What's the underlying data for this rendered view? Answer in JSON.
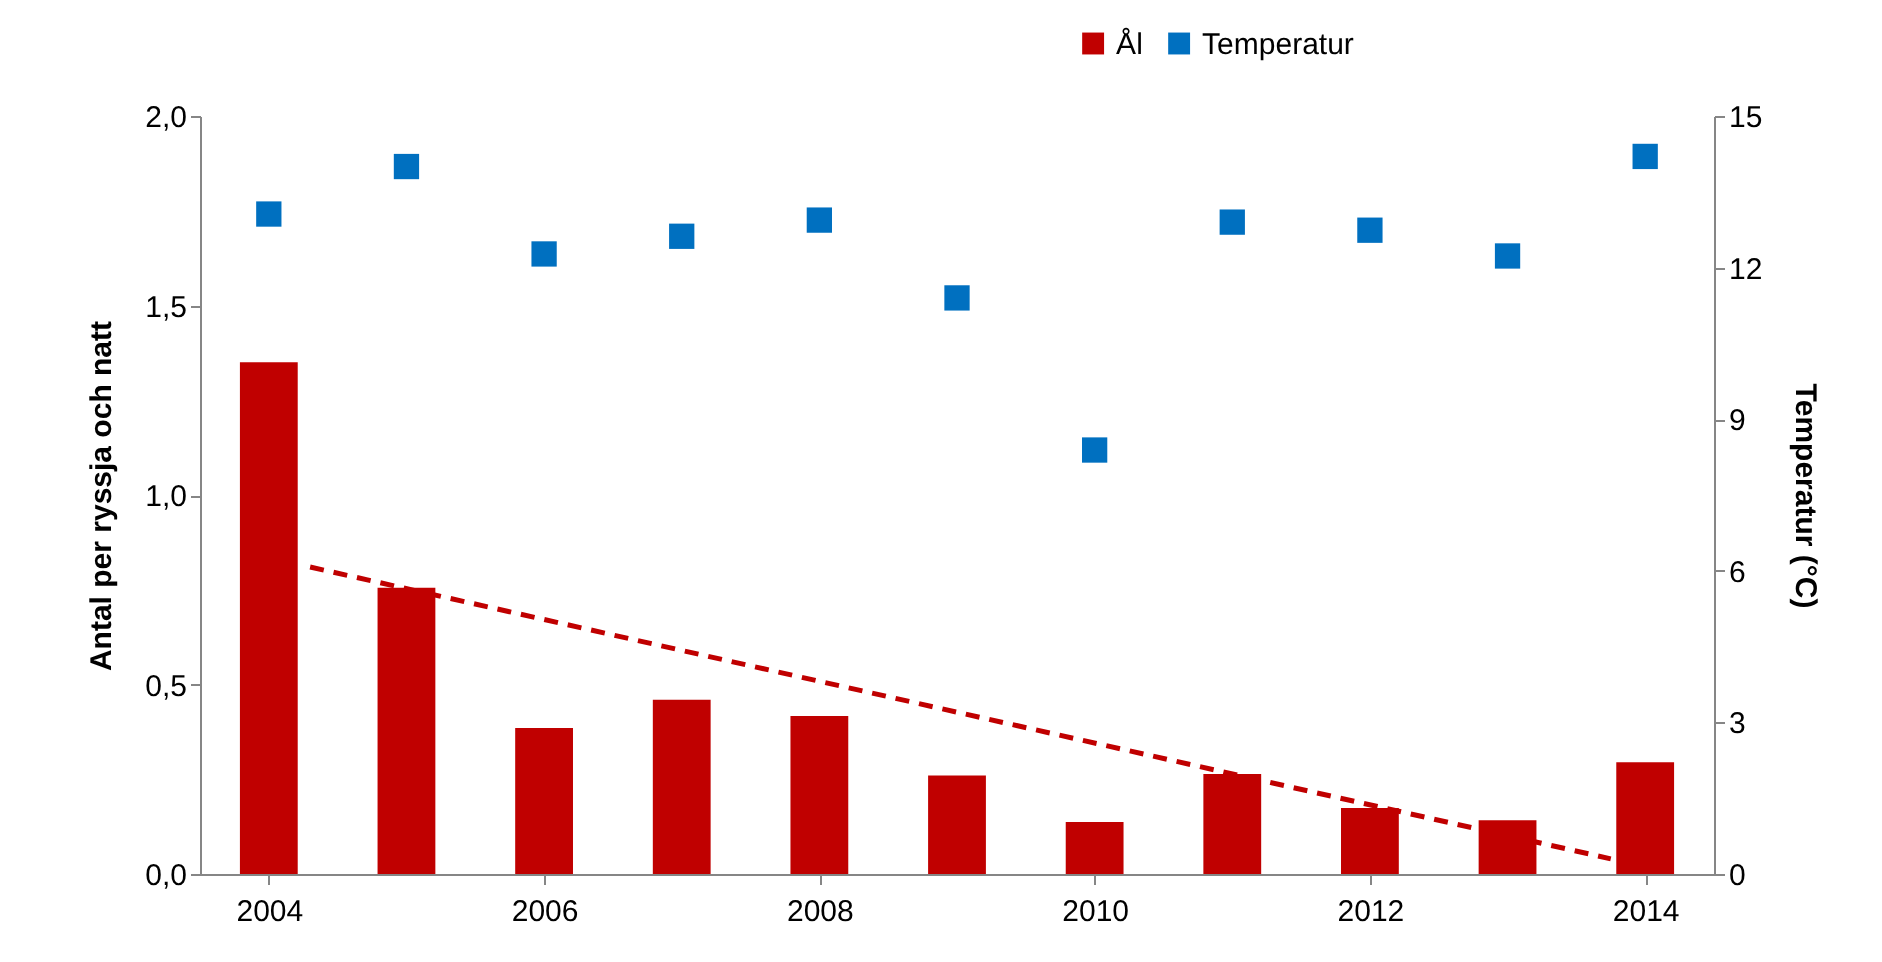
{
  "chart_data": {
    "type": "bar",
    "xlabel": null,
    "ylabel": "Antal per ryssja och natt",
    "y2label": "Temperatur (°C)",
    "x": [
      2004,
      2005,
      2006,
      2007,
      2008,
      2009,
      2010,
      2011,
      2012,
      2013,
      2014
    ],
    "xlim": [
      2003.5,
      2014.5
    ],
    "xticks": [
      2004,
      2006,
      2008,
      2010,
      2012,
      2014
    ],
    "ylim": [
      0,
      2
    ],
    "yticks": [
      {
        "value": 0,
        "label": "0,0"
      },
      {
        "value": 0.5,
        "label": "0,5"
      },
      {
        "value": 1,
        "label": "1,0"
      },
      {
        "value": 1.5,
        "label": "1,5"
      },
      {
        "value": 2,
        "label": "2,0"
      }
    ],
    "y2lim": [
      0,
      15
    ],
    "y2ticks": [
      0,
      3,
      6,
      9,
      12,
      15
    ],
    "series": [
      {
        "name": "Ål",
        "color": "#c00000",
        "values": [
          1.35,
          0.755,
          0.385,
          0.46,
          0.417,
          0.26,
          0.137,
          0.264,
          0.174,
          0.142,
          0.295
        ]
      },
      {
        "name": "Temperatur",
        "type": "scatter",
        "axis": "y2",
        "marker": "square",
        "color": "#0070c0",
        "values": [
          13.06,
          14.0,
          12.27,
          12.62,
          12.94,
          11.4,
          8.39,
          12.9,
          12.74,
          12.23,
          14.2
        ]
      },
      {
        "type": "line",
        "line_style": "dashed",
        "color": "#c00000",
        "x": [
          2004.3,
          2013.75
        ],
        "values": [
          0.81,
          0.04
        ]
      }
    ],
    "grid": false,
    "legend": "top"
  }
}
